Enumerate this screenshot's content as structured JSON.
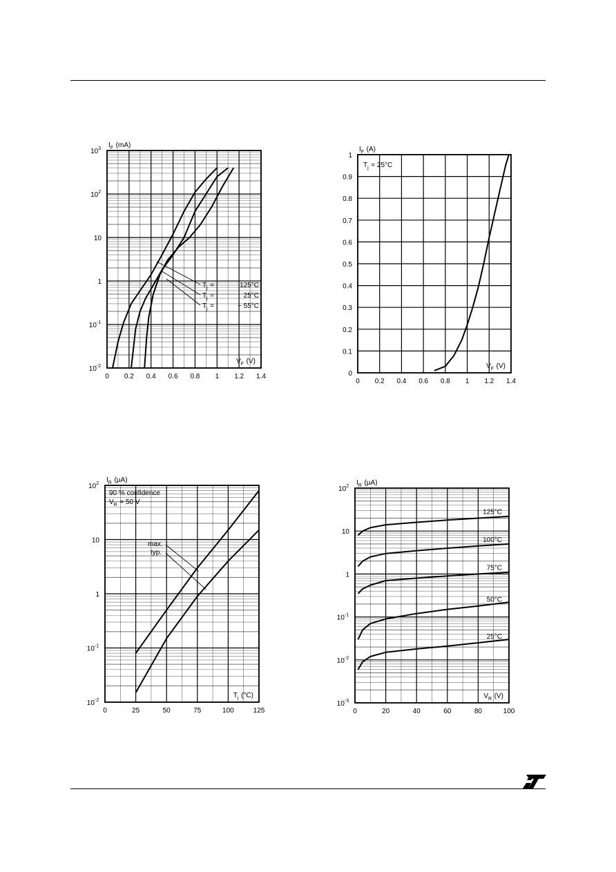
{
  "brand": {
    "logo": "ST"
  },
  "chart_data": [
    {
      "type": "line",
      "yscale": "log",
      "ylabel_html": "I_F (mA)",
      "ylabel": [
        "I",
        "F",
        "(mA)"
      ],
      "xlabel": [
        "V",
        "F",
        "(V)"
      ],
      "xlim": [
        0,
        1.4
      ],
      "ylim": [
        0.01,
        1000
      ],
      "x_ticks": [
        "0",
        "0.2",
        "0.4",
        "0.6",
        "0.8",
        "1",
        "1.2",
        "1.4"
      ],
      "y_ticks": [
        [
          "10",
          "-2"
        ],
        [
          "10",
          "-1"
        ],
        [
          "1",
          ""
        ],
        [
          "10",
          ""
        ],
        [
          "10",
          "2"
        ],
        [
          "10",
          "3"
        ]
      ],
      "grid": true,
      "series": [
        {
          "name": "Tj = 125°C",
          "label": [
            "T",
            "j",
            " = ",
            "125°C"
          ],
          "x": [
            0.05,
            0.1,
            0.15,
            0.22,
            0.3,
            0.4,
            0.5,
            0.6,
            0.7,
            0.8,
            0.9,
            1.0
          ],
          "y": [
            0.01,
            0.04,
            0.11,
            0.3,
            0.6,
            1.4,
            4,
            12,
            40,
            110,
            220,
            400
          ]
        },
        {
          "name": "Tj = 25°C",
          "label": [
            "T",
            "j",
            " = ",
            "25°C"
          ],
          "x": [
            0.22,
            0.26,
            0.3,
            0.35,
            0.42,
            0.5,
            0.6,
            0.7,
            0.8,
            0.9,
            1.0,
            1.1
          ],
          "y": [
            0.01,
            0.08,
            0.2,
            0.4,
            0.8,
            1.8,
            4,
            10,
            40,
            100,
            250,
            400
          ]
        },
        {
          "name": "Tj = -55°C",
          "label": [
            "T",
            "j",
            " = ",
            "− 55°C"
          ],
          "x": [
            0.34,
            0.36,
            0.38,
            0.42,
            0.48,
            0.55,
            0.65,
            0.75,
            0.85,
            0.95,
            1.05,
            1.15
          ],
          "y": [
            0.01,
            0.05,
            0.15,
            0.5,
            1.4,
            3,
            6,
            10,
            20,
            50,
            150,
            400
          ]
        }
      ]
    },
    {
      "type": "line",
      "ylabel": [
        "I",
        "F",
        "(A)"
      ],
      "xlabel": [
        "V",
        "F",
        "(V)"
      ],
      "xlim": [
        0,
        1.4
      ],
      "ylim": [
        0,
        1
      ],
      "annotation": [
        "T",
        "j",
        " = 25°C"
      ],
      "x_ticks": [
        "0",
        "0.2",
        "0.4",
        "0.6",
        "0.8",
        "1",
        "1.2",
        "1.4"
      ],
      "y_ticks": [
        "0",
        "0.1",
        "0.2",
        "0.3",
        "0.4",
        "0.5",
        "0.6",
        "0.7",
        "0.8",
        "0.9",
        "1"
      ],
      "grid": true,
      "series": [
        {
          "x": [
            0.7,
            0.8,
            0.88,
            0.95,
            1.0,
            1.05,
            1.1,
            1.15,
            1.2,
            1.25,
            1.3,
            1.35,
            1.38
          ],
          "y": [
            0.01,
            0.03,
            0.08,
            0.15,
            0.22,
            0.3,
            0.39,
            0.5,
            0.62,
            0.73,
            0.84,
            0.95,
            1.0
          ]
        }
      ]
    },
    {
      "type": "line",
      "yscale": "log",
      "ylabel": [
        "I",
        "R",
        "(µA)"
      ],
      "xlabel": [
        "T",
        "j",
        "(°C)"
      ],
      "xlim": [
        0,
        125
      ],
      "ylim": [
        0.01,
        100
      ],
      "annotation": [
        [
          "90 % confidence",
          ""
        ],
        [
          "V",
          "R",
          " = 50 V"
        ]
      ],
      "x_ticks": [
        "0",
        "25",
        "50",
        "75",
        "100",
        "125"
      ],
      "y_ticks": [
        [
          "10",
          "-2"
        ],
        [
          "10",
          "-1"
        ],
        [
          "1",
          ""
        ],
        [
          "10",
          ""
        ],
        [
          "10",
          "2"
        ]
      ],
      "grid": true,
      "series": [
        {
          "name": "max.",
          "label": "max.",
          "x": [
            25,
            50,
            75,
            100,
            125
          ],
          "y": [
            0.08,
            0.5,
            3,
            15,
            80
          ]
        },
        {
          "name": "typ.",
          "label": "typ.",
          "x": [
            25,
            50,
            75,
            100,
            125
          ],
          "y": [
            0.015,
            0.15,
            0.9,
            4,
            15
          ]
        }
      ]
    },
    {
      "type": "line",
      "yscale": "log",
      "ylabel": [
        "I",
        "R",
        "(µA)"
      ],
      "xlabel": [
        "V",
        "R",
        "(V)"
      ],
      "xlim": [
        0,
        100
      ],
      "ylim": [
        0.001,
        100
      ],
      "x_ticks": [
        "0",
        "20",
        "40",
        "60",
        "80",
        "100"
      ],
      "y_ticks": [
        [
          "10",
          "-3"
        ],
        [
          "10",
          "-2"
        ],
        [
          "10",
          "-1"
        ],
        [
          "1",
          ""
        ],
        [
          "10",
          ""
        ],
        [
          "10",
          "2"
        ]
      ],
      "grid": true,
      "series": [
        {
          "name": "125°C",
          "label": "125°C",
          "x": [
            2,
            5,
            10,
            20,
            40,
            60,
            80,
            100
          ],
          "y": [
            8,
            10,
            12,
            14,
            16,
            18,
            20,
            22
          ]
        },
        {
          "name": "100°C",
          "label": "100°C",
          "x": [
            2,
            5,
            10,
            20,
            40,
            60,
            80,
            100
          ],
          "y": [
            1.5,
            2,
            2.5,
            3,
            3.5,
            4,
            4.5,
            5
          ]
        },
        {
          "name": "75°C",
          "label": "75°C",
          "x": [
            2,
            5,
            10,
            20,
            40,
            60,
            80,
            100
          ],
          "y": [
            0.35,
            0.45,
            0.55,
            0.7,
            0.8,
            0.9,
            1.0,
            1.1
          ]
        },
        {
          "name": "50°C",
          "label": "50°C",
          "x": [
            2,
            5,
            10,
            20,
            40,
            60,
            80,
            100
          ],
          "y": [
            0.03,
            0.05,
            0.07,
            0.09,
            0.12,
            0.15,
            0.18,
            0.22
          ]
        },
        {
          "name": "25°C",
          "label": "25°C",
          "x": [
            2,
            5,
            10,
            20,
            40,
            60,
            80,
            100
          ],
          "y": [
            0.006,
            0.009,
            0.012,
            0.015,
            0.018,
            0.021,
            0.025,
            0.03
          ]
        }
      ]
    }
  ]
}
